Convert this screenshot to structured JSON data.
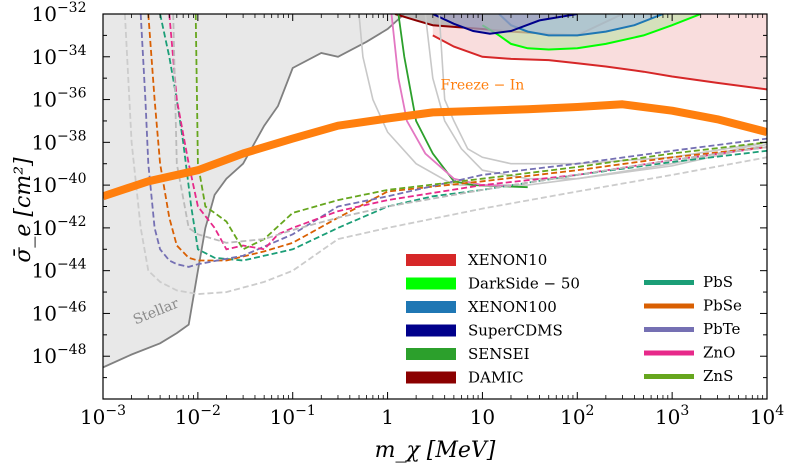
{
  "chart_data": {
    "type": "line",
    "title": "",
    "xlabel": "m_χ [MeV]",
    "ylabel": "σ̄_e [cm²]",
    "xscale": "log",
    "yscale": "log",
    "xlim": [
      0.001,
      10000
    ],
    "ylim": [
      1e-50,
      1e-32
    ],
    "x_ticks": [
      {
        "value": 0.001,
        "base": "10",
        "exp": "−3"
      },
      {
        "value": 0.01,
        "base": "10",
        "exp": "−2"
      },
      {
        "value": 0.1,
        "base": "10",
        "exp": "−1"
      },
      {
        "value": 1,
        "base": "1",
        "exp": ""
      },
      {
        "value": 10,
        "base": "10",
        "exp": ""
      },
      {
        "value": 100,
        "base": "10",
        "exp": "2"
      },
      {
        "value": 1000,
        "base": "10",
        "exp": "3"
      },
      {
        "value": 10000,
        "base": "10",
        "exp": "4"
      }
    ],
    "y_ticks": [
      {
        "value": 1e-48,
        "base": "10",
        "exp": "−48"
      },
      {
        "value": 1e-46,
        "base": "10",
        "exp": "−46"
      },
      {
        "value": 1e-44,
        "base": "10",
        "exp": "−44"
      },
      {
        "value": 1e-42,
        "base": "10",
        "exp": "−42"
      },
      {
        "value": 1e-40,
        "base": "10",
        "exp": "−40"
      },
      {
        "value": 1e-38,
        "base": "10",
        "exp": "−38"
      },
      {
        "value": 1e-36,
        "base": "10",
        "exp": "−36"
      },
      {
        "value": 1e-34,
        "base": "10",
        "exp": "−34"
      },
      {
        "value": 1e-32,
        "base": "10",
        "exp": "−32"
      }
    ],
    "regions": [
      {
        "name": "Stellar",
        "color": "#e8e8e8",
        "edge": "#808080",
        "label": "Stellar",
        "x": [
          0.001,
          0.002,
          0.004,
          0.006,
          0.008,
          0.01,
          0.012,
          0.015,
          0.02,
          0.03,
          0.05,
          0.07,
          0.1,
          0.2,
          0.3,
          0.6,
          1.0,
          1.5
        ],
        "y": [
          3e-49,
          1.2e-48,
          4e-48,
          1.2e-47,
          3e-47,
          1e-44,
          1e-42,
          3.5e-41,
          2e-40,
          1e-39,
          6e-38,
          5e-37,
          3e-35,
          1.5e-34,
          1e-34,
          5e-34,
          2e-33,
          1e-32
        ]
      },
      {
        "name": "XENON10",
        "color": "#f7d1d1",
        "edge": "#d62728",
        "x": [
          3,
          5,
          10,
          20,
          50,
          100,
          200,
          500,
          1000,
          3000,
          10000
        ],
        "y": [
          1e-33,
          3e-34,
          1e-34,
          8e-35,
          7e-35,
          5e-35,
          3.5e-35,
          2e-35,
          1.2e-35,
          6e-36,
          3e-36
        ]
      },
      {
        "name": "DAMIC",
        "color": "#a9a9a9",
        "edge": "#8b0000",
        "x": [
          1.2,
          2,
          3,
          5,
          10,
          20,
          50,
          100,
          300
        ],
        "y": [
          1e-32,
          5e-33,
          3e-33,
          2.5e-33,
          2e-33,
          1.5e-33,
          1.2e-33,
          1e-33,
          1e-32
        ]
      },
      {
        "name": "DarkSide-50",
        "color": "#c8e0b0",
        "edge": "#00ff00",
        "x": [
          10,
          15,
          20,
          30,
          50,
          100,
          200,
          500,
          1000,
          2000
        ],
        "y": [
          3e-33,
          1e-33,
          4e-34,
          2.5e-34,
          2.2e-34,
          2.5e-34,
          4e-34,
          1e-33,
          3e-33,
          1e-32
        ]
      },
      {
        "name": "XENON100",
        "color": "#a8c0d8",
        "edge": "#1f77b4",
        "x": [
          15,
          20,
          30,
          50,
          100,
          200,
          400,
          800
        ],
        "y": [
          1e-32,
          3e-33,
          1.5e-33,
          1e-33,
          1e-33,
          1.5e-33,
          3e-33,
          1e-32
        ]
      },
      {
        "name": "SuperCDMS",
        "color": "#a0a0c0",
        "edge": "#00008b",
        "x": [
          3,
          5,
          8,
          12,
          20,
          40,
          100
        ],
        "y": [
          1e-32,
          3.5e-33,
          1.6e-33,
          1.2e-33,
          1.6e-33,
          5e-33,
          1e-32
        ]
      }
    ],
    "freeze_in": {
      "name": "Freeze-In",
      "label": "Freeze − In",
      "color": "#ff7f0e",
      "x": [
        0.001,
        0.003,
        0.01,
        0.03,
        0.1,
        0.3,
        1,
        3,
        10,
        30,
        100,
        300,
        1000,
        3000,
        10000
      ],
      "y": [
        3e-41,
        1.5e-40,
        5e-40,
        3e-39,
        1.5e-38,
        6e-38,
        1.3e-37,
        2.5e-37,
        3e-37,
        3.5e-37,
        4.5e-37,
        6e-37,
        3e-37,
        1.2e-37,
        3e-38
      ]
    },
    "sensei_lines": [
      {
        "name": "SENSEI",
        "color": "#2ca02c",
        "x": [
          1.3,
          1.5,
          2,
          3,
          5,
          8,
          15,
          30
        ],
        "y": [
          1e-32,
          1e-34,
          1e-37,
          3e-39,
          1.5e-40,
          1e-40,
          9e-41,
          8e-41
        ]
      },
      {
        "name": "DAMIC",
        "color": "#e377c2",
        "x": [
          1.1,
          1.3,
          1.6,
          2.5,
          5,
          10,
          20
        ],
        "y": [
          1e-32,
          1e-35,
          1e-37,
          3e-39,
          2e-40,
          1e-40,
          9e-41
        ]
      }
    ],
    "gray_solid_lines": [
      {
        "x": [
          0.5,
          0.55,
          0.7,
          1.0,
          2,
          5,
          10,
          30,
          100,
          1000,
          10000
        ],
        "y": [
          1e-32,
          1e-34,
          1e-36,
          3e-38,
          1e-39,
          1e-40,
          1e-40,
          1e-40,
          2e-40,
          1e-39,
          1e-38
        ]
      },
      {
        "x": [
          2.5,
          3,
          4,
          6,
          10,
          30,
          100,
          1000,
          10000
        ],
        "y": [
          1e-32,
          1e-35,
          1e-37,
          5e-39,
          5e-40,
          2e-40,
          2e-40,
          8e-40,
          8e-39
        ]
      },
      {
        "x": [
          3.5,
          4,
          5,
          7,
          10,
          20,
          100,
          1000,
          10000
        ],
        "y": [
          1e-32,
          1e-36,
          1e-37,
          5e-39,
          2e-39,
          1e-39,
          1e-39,
          2e-39,
          1e-38
        ]
      }
    ],
    "series": [
      {
        "name": "PbS",
        "color": "#1b9e77",
        "x": [
          0.004,
          0.005,
          0.006,
          0.007,
          0.0085,
          0.01,
          0.015,
          0.03,
          0.1,
          0.3,
          1,
          3,
          10,
          100,
          1000,
          10000
        ],
        "y": [
          1e-32,
          1e-34,
          1e-36,
          1e-38,
          1e-41,
          1e-43,
          4e-44,
          3e-44,
          1e-43,
          1e-42,
          1e-41,
          3e-41,
          6e-41,
          3e-40,
          1.2e-39,
          4e-39
        ]
      },
      {
        "name": "PbSe",
        "color": "#d95f02",
        "x": [
          0.003,
          0.0035,
          0.004,
          0.005,
          0.006,
          0.008,
          0.01,
          0.02,
          0.05,
          0.1,
          0.3,
          1,
          10,
          100,
          1000,
          10000
        ],
        "y": [
          1e-32,
          1e-36,
          1e-39,
          3e-42,
          1.5e-43,
          4e-44,
          3e-44,
          3e-44,
          8e-44,
          2e-43,
          3e-42,
          5e-41,
          1.5e-40,
          5e-40,
          2e-39,
          6e-39
        ]
      },
      {
        "name": "PbTe",
        "color": "#7570b3",
        "x": [
          0.0025,
          0.0028,
          0.003,
          0.0035,
          0.004,
          0.005,
          0.006,
          0.008,
          0.01,
          0.03,
          0.1,
          0.3,
          1,
          10,
          100,
          1000,
          10000
        ],
        "y": [
          1e-32,
          1e-36,
          1e-39,
          1e-42,
          1e-43,
          3e-44,
          2e-44,
          1.5e-44,
          2e-44,
          5e-44,
          5e-43,
          1e-41,
          3e-41,
          3e-40,
          1e-39,
          4e-39,
          1.5e-38
        ]
      },
      {
        "name": "ZnO",
        "color": "#e7298a",
        "x": [
          0.005,
          0.006,
          0.008,
          0.01,
          0.015,
          0.02,
          0.03,
          0.05,
          0.07,
          0.1,
          0.3,
          1,
          10,
          100,
          1000,
          10000
        ],
        "y": [
          1e-32,
          1e-36,
          1e-39,
          1e-41,
          1e-42,
          1e-43,
          1.5e-43,
          1e-43,
          5e-43,
          1e-42,
          6e-42,
          2e-41,
          1e-40,
          3e-40,
          1.5e-39,
          6e-39
        ]
      },
      {
        "name": "ZnS",
        "color": "#66a61e",
        "x": [
          0.0095,
          0.0098,
          0.01,
          0.012,
          0.015,
          0.02,
          0.03,
          0.05,
          0.1,
          0.3,
          1,
          10,
          100,
          1000,
          10000
        ],
        "y": [
          1e-32,
          1e-36,
          1e-39,
          1e-41,
          5e-42,
          2e-42,
          1e-43,
          3e-43,
          5e-42,
          2e-41,
          6e-41,
          2e-40,
          7e-40,
          3e-39,
          1e-38
        ]
      },
      {
        "name": "Gray-dashed-1",
        "color": "#bbbbbb",
        "x": [
          0.0055,
          0.006,
          0.008,
          0.01,
          0.02,
          0.05,
          0.1,
          0.3,
          1,
          10,
          100,
          1000,
          10000
        ],
        "y": [
          1e-32,
          1e-39,
          1e-42,
          5e-43,
          2e-43,
          3e-43,
          8e-43,
          3e-42,
          1e-41,
          6e-41,
          3e-40,
          1.5e-39,
          6e-39
        ]
      },
      {
        "name": "Gray-dashed-2",
        "color": "#cccccc",
        "x": [
          0.0017,
          0.002,
          0.0025,
          0.003,
          0.004,
          0.006,
          0.01,
          0.02,
          0.05,
          0.1,
          0.3,
          1,
          10,
          100,
          1000,
          10000
        ],
        "y": [
          1e-32,
          1e-38,
          1e-42,
          1e-44,
          3e-45,
          1.2e-45,
          8e-46,
          1e-45,
          3e-45,
          1e-44,
          3e-43,
          1e-42,
          8e-42,
          5e-41,
          3e-40,
          2e-39
        ]
      }
    ],
    "legend": {
      "placement": "bottom-right",
      "col1": [
        {
          "label": "XENON10",
          "color": "#d62728"
        },
        {
          "label": "DarkSide − 50",
          "color": "#00ff00"
        },
        {
          "label": "XENON100",
          "color": "#1f77b4"
        },
        {
          "label": "SuperCDMS",
          "color": "#00008b"
        },
        {
          "label": "SENSEI",
          "color": "#2ca02c"
        },
        {
          "label": "DAMIC",
          "color": "#8b0000"
        }
      ],
      "col2": [
        {
          "label": "PbS",
          "color": "#1b9e77"
        },
        {
          "label": "PbSe",
          "color": "#d95f02"
        },
        {
          "label": "PbTe",
          "color": "#7570b3"
        },
        {
          "label": "ZnO",
          "color": "#e7298a"
        },
        {
          "label": "ZnS",
          "color": "#66a61e"
        }
      ]
    }
  }
}
